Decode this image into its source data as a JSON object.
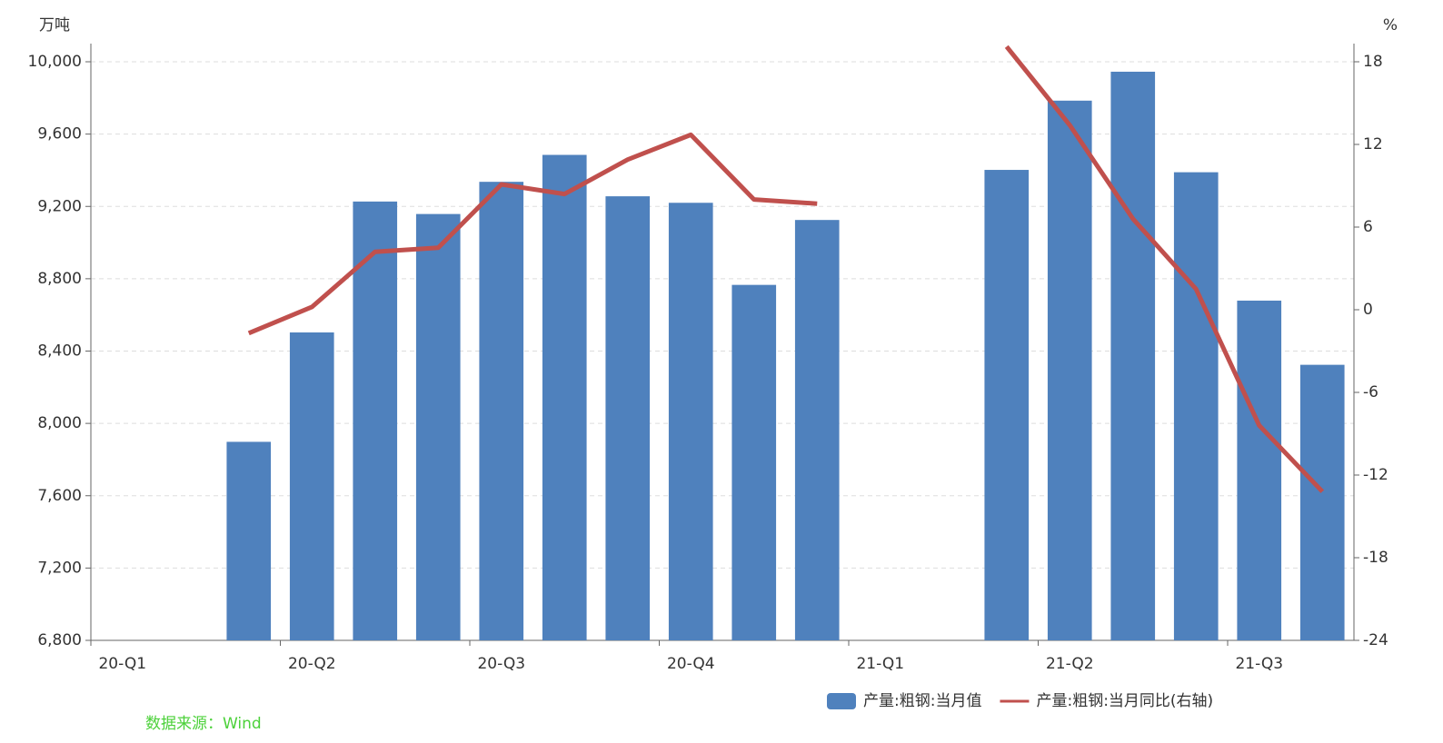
{
  "chart_data": {
    "type": "bar_line",
    "y_label": "万吨",
    "y2_label": "%",
    "categories": [
      "20-Q1",
      null,
      null,
      "20-Q2",
      null,
      null,
      "20-Q3",
      null,
      null,
      "20-Q4",
      null,
      null,
      "21-Q1",
      null,
      null,
      "21-Q2",
      null,
      null,
      "21-Q3",
      null
    ],
    "series": [
      {
        "name": "产量:粗钢:当月值",
        "type": "bar",
        "color": "#4f81bd",
        "values": [
          null,
          null,
          7898,
          8503,
          9227,
          9158,
          9336,
          9485,
          9256,
          9220,
          8766,
          9125,
          null,
          null,
          9402,
          9785,
          9945,
          9389,
          8679,
          8324
        ]
      },
      {
        "name": "产量:粗钢:当月同比(右轴)",
        "type": "line",
        "axis": "y2",
        "color": "#c0504d",
        "values": [
          null,
          null,
          -1.7,
          0.2,
          4.2,
          4.5,
          9.1,
          8.4,
          10.9,
          12.7,
          8.0,
          7.7,
          null,
          null,
          19.1,
          13.4,
          6.6,
          1.5,
          -8.4,
          -13.2
        ]
      }
    ],
    "ylim": [
      6800,
      10000
    ],
    "yticks": [
      {
        "value": 6800,
        "label": "6,800"
      },
      {
        "value": 7200,
        "label": "7,200"
      },
      {
        "value": 7600,
        "label": "7,600"
      },
      {
        "value": 8000,
        "label": "8,000"
      },
      {
        "value": 8400,
        "label": "8,400"
      },
      {
        "value": 8800,
        "label": "8,800"
      },
      {
        "value": 9200,
        "label": "9,200"
      },
      {
        "value": 9600,
        "label": "9,600"
      },
      {
        "value": 10000,
        "label": "10,000"
      }
    ],
    "y2lim": [
      -24,
      18
    ],
    "y2ticks": [
      -24,
      -18,
      -12,
      -6,
      0,
      6,
      12,
      18
    ],
    "grid": true,
    "legend": "bottom",
    "source": "数据来源：Wind"
  }
}
